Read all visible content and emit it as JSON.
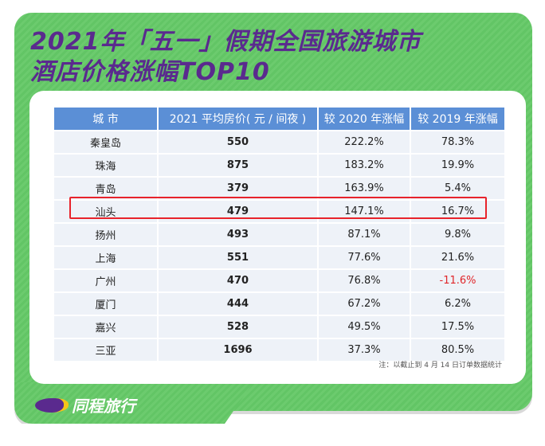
{
  "title_line1": "2021年「五一」假期全国旅游城市",
  "title_line2": "酒店价格涨幅TOP10",
  "table": {
    "headers": [
      "城 市",
      "2021 平均房价( 元 / 间夜 )",
      "较 2020 年涨幅",
      "较 2019 年涨幅"
    ],
    "rows": [
      [
        "秦皇岛",
        "550",
        "222.2%",
        "78.3%"
      ],
      [
        "珠海",
        "875",
        "183.2%",
        "19.9%"
      ],
      [
        "青岛",
        "379",
        "163.9%",
        "5.4%"
      ],
      [
        "汕头",
        "479",
        "147.1%",
        "16.7%"
      ],
      [
        "扬州",
        "493",
        "87.1%",
        "9.8%"
      ],
      [
        "上海",
        "551",
        "77.6%",
        "21.6%"
      ],
      [
        "广州",
        "470",
        "76.8%",
        "-11.6%"
      ],
      [
        "厦门",
        "444",
        "67.2%",
        "6.2%"
      ],
      [
        "嘉兴",
        "528",
        "49.5%",
        "17.5%"
      ],
      [
        "三亚",
        "1696",
        "37.3%",
        "80.5%"
      ]
    ],
    "highlighted_city": "汕头"
  },
  "note": "注：以截止到 4 月 14 日订单数据统计",
  "brand": "同程旅行",
  "colors": {
    "background": "#66c768",
    "title": "#5a2a8e",
    "header": "#5b8fd6",
    "highlight": "#e8232b",
    "negative": "#e0262a"
  }
}
